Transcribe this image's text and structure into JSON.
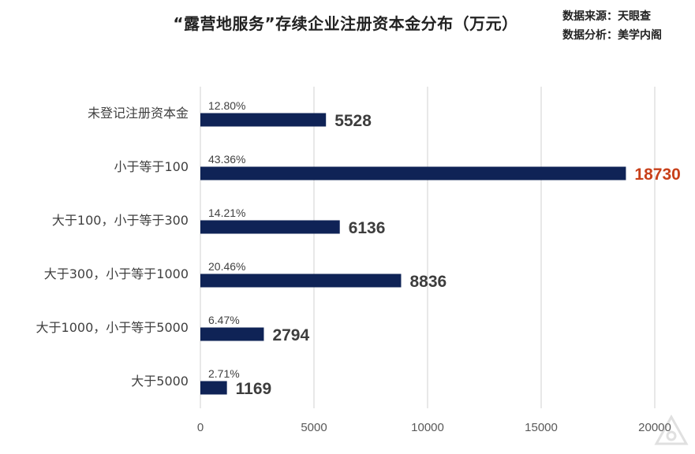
{
  "title": "“露营地服务”存续企业注册资本金分布（万元）",
  "source": {
    "line1": "数据来源：天眼查",
    "line2": "数据分析：美学内阁"
  },
  "colors": {
    "bar": "#0f2356",
    "value_normal": "#3d3d3d",
    "value_highlight": "#c8401a",
    "grid": "#d9d9d9",
    "text": "#404040"
  },
  "chart_data": {
    "type": "bar",
    "orientation": "horizontal",
    "categories": [
      "未登记注册资本金",
      "小于等于100",
      "大于100，小于等于300",
      "大于300，小于等于1000",
      "大于1000，小于等于5000",
      "大于5000"
    ],
    "values": [
      5528,
      18730,
      6136,
      8836,
      2794,
      1169
    ],
    "percent_labels": [
      "12.80%",
      "43.36%",
      "14.21%",
      "20.46%",
      "6.47%",
      "2.71%"
    ],
    "highlight_index": 1,
    "xlim": [
      0,
      20000
    ],
    "xticks": [
      0,
      5000,
      10000,
      15000,
      20000
    ],
    "grid": true,
    "legend": "none"
  }
}
